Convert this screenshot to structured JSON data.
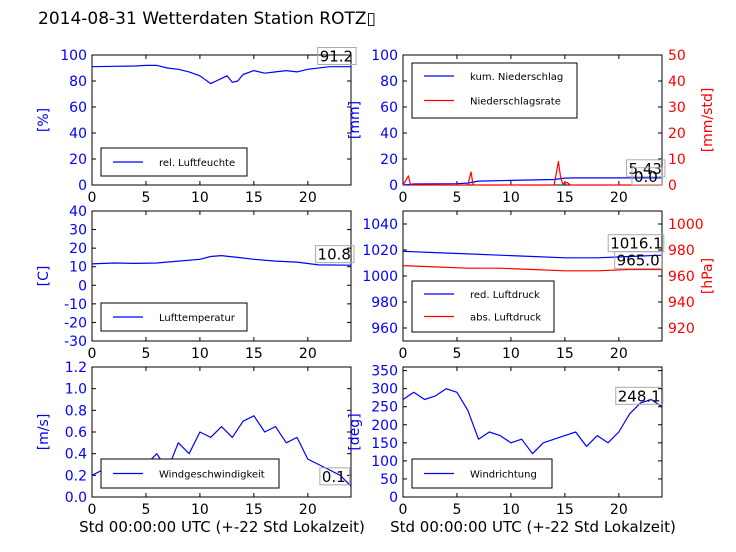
{
  "page": {
    "title": "2014-08-31 Wetterdaten Station ROTZ▯"
  },
  "colors": {
    "primary": "#0000ff",
    "secondary": "#ff0000",
    "secondary_light": "#8888ff",
    "axis": "#000000"
  },
  "chart_data": [
    {
      "type": "line",
      "panel": "humidity",
      "xlim": [
        0,
        24
      ],
      "xticks": [
        0,
        5,
        10,
        15,
        20
      ],
      "ylabel": "[%]",
      "ylim": [
        0,
        100
      ],
      "yticks": [
        0,
        20,
        40,
        60,
        80,
        100
      ],
      "legend_position": "lower-left",
      "annotations": [
        {
          "text": "91.2",
          "x": 21.1,
          "y": 95
        }
      ],
      "series": [
        {
          "name": "rel. Luftfeuchte",
          "color": "#0000ff",
          "x": [
            0,
            2,
            4,
            5,
            6,
            7,
            8,
            9,
            10,
            11,
            11.5,
            12,
            12.5,
            13,
            13.5,
            14,
            15,
            16,
            17,
            18,
            19,
            20,
            22,
            24
          ],
          "y": [
            91,
            91.3,
            91.5,
            92,
            92,
            90,
            89,
            87,
            84,
            78,
            80,
            82,
            84,
            79,
            80,
            85,
            88,
            86,
            87,
            88,
            87,
            89,
            91,
            91
          ]
        }
      ]
    },
    {
      "type": "line",
      "panel": "precipitation",
      "xlim": [
        0,
        24
      ],
      "xticks": [
        0,
        5,
        10,
        15,
        20
      ],
      "ylabel": "[mm]",
      "ylim": [
        0,
        100
      ],
      "yticks": [
        0,
        20,
        40,
        60,
        80,
        100
      ],
      "ylabel_right": "[mm/std]",
      "ylim_right": [
        0,
        50
      ],
      "yticks_right": [
        0,
        10,
        20,
        30,
        40,
        50
      ],
      "legend_position": "upper-left",
      "annotations": [
        {
          "text": "5.43",
          "x": 20.9,
          "y": 8.6
        },
        {
          "text": "0.0",
          "x": 21.4,
          "y": 2.5
        }
      ],
      "series": [
        {
          "name": "kum. Niederschlag",
          "color": "#0000ff",
          "axis": "left",
          "x": [
            0,
            0.5,
            1,
            5,
            6,
            7,
            10,
            14,
            15,
            16,
            24
          ],
          "y": [
            0,
            0.3,
            0.8,
            1.0,
            1.5,
            3,
            3.5,
            4.2,
            5.3,
            5.43,
            5.43
          ]
        },
        {
          "name": "Niederschlagsrate",
          "color": "#ff0000",
          "axis": "right",
          "x": [
            0,
            0.3,
            0.5,
            0.7,
            1,
            6,
            6.3,
            6.5,
            7,
            14,
            14.4,
            14.6,
            14.8,
            15.2,
            15.5,
            16,
            24
          ],
          "y": [
            0,
            2,
            3.5,
            0,
            0,
            0,
            5,
            0,
            0,
            0,
            9,
            3,
            0.5,
            1,
            0,
            0,
            0
          ]
        }
      ]
    },
    {
      "type": "line",
      "panel": "temperature",
      "xlim": [
        0,
        24
      ],
      "xticks": [
        0,
        5,
        10,
        15,
        20
      ],
      "ylabel": "[C]",
      "ylim": [
        -30,
        40
      ],
      "yticks": [
        -30,
        -20,
        -10,
        0,
        10,
        20,
        30,
        40
      ],
      "legend_position": "lower-left",
      "annotations": [
        {
          "text": "10.8",
          "x": 20.9,
          "y": 13.8
        }
      ],
      "series": [
        {
          "name": "Lufttemperatur",
          "color": "#0000ff",
          "x": [
            0,
            2,
            4,
            6,
            8,
            10,
            11,
            12,
            12.7,
            13.5,
            15,
            17,
            19,
            21,
            24
          ],
          "y": [
            11.5,
            12,
            11.8,
            12,
            13,
            14,
            15.5,
            16,
            15.5,
            15,
            14,
            13,
            12.5,
            11,
            10.8
          ]
        }
      ]
    },
    {
      "type": "line",
      "panel": "pressure",
      "xlim": [
        0,
        24
      ],
      "xticks": [
        0,
        5,
        10,
        15,
        20
      ],
      "ylabel": "",
      "ylim": [
        950,
        1050
      ],
      "yticks": [
        960,
        980,
        1000,
        1020,
        1040
      ],
      "ylabel_right": "[hPa]",
      "ylim_right": [
        910,
        1010
      ],
      "yticks_right": [
        920,
        940,
        960,
        980,
        1000
      ],
      "legend_position": "lower-left",
      "annotations": [
        {
          "text": "1016.1",
          "x": 19.2,
          "y": 1021
        },
        {
          "text": "965.0",
          "x": 19.8,
          "y": 1008
        }
      ],
      "series": [
        {
          "name": "red. Luftdruck",
          "color": "#0000ff",
          "axis": "left",
          "x": [
            0,
            3,
            6,
            9,
            12,
            15,
            18,
            21,
            24
          ],
          "y": [
            1019,
            1018,
            1017,
            1016,
            1015,
            1014,
            1014,
            1015,
            1016
          ]
        },
        {
          "name": "abs. Luftdruck",
          "color": "#ff0000",
          "axis": "right",
          "x": [
            0,
            3,
            6,
            9,
            12,
            15,
            18,
            21,
            24
          ],
          "y": [
            968,
            967,
            966,
            966,
            965,
            964,
            964,
            965,
            965
          ]
        }
      ]
    },
    {
      "type": "line",
      "panel": "wind-speed",
      "xlim": [
        0,
        24
      ],
      "xticks": [
        0,
        5,
        10,
        15,
        20
      ],
      "ylabel": "[m/s]",
      "ylim": [
        0,
        1.2
      ],
      "yticks": [
        0.0,
        0.2,
        0.4,
        0.6,
        0.8,
        1.0,
        1.2
      ],
      "legend_position": "lower-center",
      "annotations": [
        {
          "text": "0.1",
          "x": 21.3,
          "y": 0.14
        }
      ],
      "series": [
        {
          "name": "Windgeschwindigkeit",
          "color": "#0000ff",
          "x": [
            0,
            1,
            2,
            3,
            4,
            5,
            6,
            7,
            8,
            9,
            10,
            11,
            12,
            13,
            14,
            15,
            16,
            17,
            18,
            19,
            20,
            21,
            22,
            23,
            24
          ],
          "y": [
            0.2,
            0.25,
            0.3,
            0.15,
            0.2,
            0.3,
            0.4,
            0.25,
            0.5,
            0.4,
            0.6,
            0.55,
            0.65,
            0.55,
            0.7,
            0.75,
            0.6,
            0.65,
            0.5,
            0.55,
            0.35,
            0.3,
            0.25,
            0.2,
            0.1
          ]
        }
      ]
    },
    {
      "type": "line",
      "panel": "wind-direction",
      "xlim": [
        0,
        24
      ],
      "xticks": [
        0,
        5,
        10,
        15,
        20
      ],
      "ylabel": "[deg]",
      "ylim": [
        0,
        360
      ],
      "yticks": [
        0,
        50,
        100,
        150,
        200,
        250,
        300,
        350
      ],
      "legend_position": "lower-left",
      "annotations": [
        {
          "text": "248.1",
          "x": 19.9,
          "y": 265
        }
      ],
      "series": [
        {
          "name": "Windrichtung",
          "color": "#0000ff",
          "x": [
            0,
            1,
            2,
            3,
            4,
            5,
            6,
            7,
            8,
            9,
            10,
            11,
            12,
            13,
            14,
            15,
            16,
            17,
            18,
            19,
            20,
            21,
            22,
            23,
            24
          ],
          "y": [
            270,
            290,
            270,
            280,
            300,
            290,
            240,
            160,
            180,
            170,
            150,
            160,
            120,
            150,
            160,
            170,
            180,
            140,
            170,
            150,
            180,
            230,
            260,
            270,
            250
          ]
        }
      ]
    }
  ],
  "bottom_labels": {
    "left": "Std 00:00:00 UTC (+-22 Std Lokalzeit)",
    "right": "Std 00:00:00 UTC (+-22 Std Lokalzeit)"
  }
}
